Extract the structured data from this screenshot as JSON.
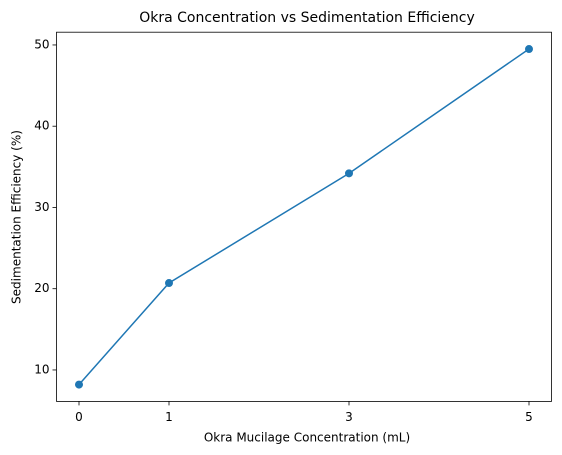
{
  "chart_data": {
    "type": "line",
    "title": "Okra Concentration vs Sedimentation Efficiency",
    "x_label": "Okra Mucilage Concentration (mL)",
    "y_label": "Sedimentation Efficiency (%)",
    "x": [
      0,
      1,
      3,
      5
    ],
    "series": [
      {
        "name": "Sedimentation Efficiency",
        "color": "#1f77b4",
        "values": [
          8.2,
          20.7,
          34.2,
          49.5
        ]
      }
    ],
    "xlim": [
      -0.25,
      5.25
    ],
    "xticks": [
      0,
      1,
      3,
      5
    ],
    "ylim": [
      6.13,
      51.57
    ],
    "yticks": [
      10,
      20,
      30,
      40,
      50
    ],
    "grid": false,
    "markers": true
  }
}
